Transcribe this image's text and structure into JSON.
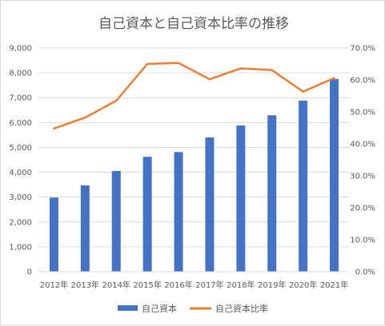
{
  "chart_data": {
    "type": "bar",
    "title": "自己資本と自己資本比率の推移",
    "categories": [
      "2012年",
      "2013年",
      "2014年",
      "2015年",
      "2016年",
      "2017年",
      "2018年",
      "2019年",
      "2020年",
      "2021年"
    ],
    "series": [
      {
        "name": "自己資本",
        "type": "bar",
        "axis": "left",
        "color": "#4472C4",
        "values": [
          2980,
          3470,
          4050,
          4620,
          4810,
          5400,
          5880,
          6290,
          6880,
          7750
        ]
      },
      {
        "name": "自己資本比率",
        "type": "line",
        "axis": "right",
        "color": "#ED7D31",
        "values": [
          44.8,
          48.2,
          53.5,
          65.0,
          65.3,
          60.2,
          63.6,
          63.1,
          56.3,
          60.6
        ]
      }
    ],
    "y_left": {
      "ylim": [
        0,
        9000
      ],
      "ticks": [
        "0",
        "1,000",
        "2,000",
        "3,000",
        "4,000",
        "5,000",
        "6,000",
        "7,000",
        "8,000",
        "9,000"
      ]
    },
    "y_right": {
      "ylim": [
        0,
        70
      ],
      "ticks": [
        "0.0%",
        "10.0%",
        "20.0%",
        "30.0%",
        "40.0%",
        "50.0%",
        "60.0%",
        "70.0%"
      ]
    },
    "grid": true,
    "legend_position": "bottom"
  }
}
